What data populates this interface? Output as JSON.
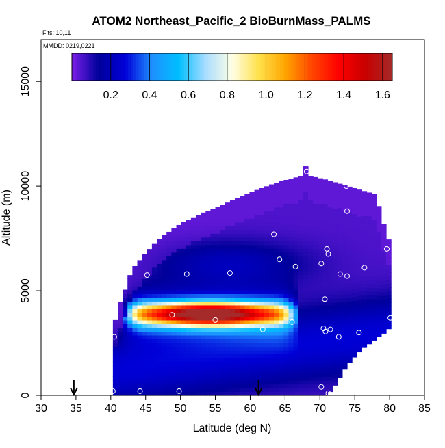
{
  "chart_data": {
    "type": "heatmap",
    "title": "ATOM2 Northeast_Pacific_2 BioBurnMass_PALMS",
    "info_lines": [
      "Flts: 10,11",
      "MMDD: 0219,0221"
    ],
    "xlabel": "Latitude (deg N)",
    "ylabel": "Altitude (m)",
    "xlim": [
      30,
      85
    ],
    "ylim": [
      0,
      17000
    ],
    "x_ticks": [
      30,
      35,
      40,
      45,
      50,
      55,
      60,
      65,
      70,
      75,
      80,
      85
    ],
    "y_ticks": [
      0,
      5000,
      10000,
      15000
    ],
    "colorbar": {
      "range": [
        0,
        1.65
      ],
      "ticks": [
        "0.2",
        "0.4",
        "0.6",
        "0.8",
        "1.0",
        "1.2",
        "1.4",
        "1.6"
      ],
      "tick_values": [
        0.2,
        0.4,
        0.6,
        0.8,
        1.0,
        1.2,
        1.4,
        1.6
      ],
      "colors": [
        "#7b1fe8",
        "#00009a",
        "#0000d8",
        "#1e90ff",
        "#00bfff",
        "#a8dcff",
        "#ffffe6",
        "#ffe04a",
        "#ffa500",
        "#ff4500",
        "#ff0000",
        "#c80000",
        "#a52a2a"
      ]
    },
    "arrows_latitude": [
      34.7,
      61.2
    ],
    "envelope": [
      {
        "lat": 40.3,
        "bottom": 0,
        "top": 3000
      },
      {
        "lat": 41.0,
        "bottom": 0,
        "top": 4200
      },
      {
        "lat": 42.0,
        "bottom": 0,
        "top": 5000
      },
      {
        "lat": 43.0,
        "bottom": 0,
        "top": 6000
      },
      {
        "lat": 45.0,
        "bottom": 0,
        "top": 6800
      },
      {
        "lat": 47.0,
        "bottom": 0,
        "top": 7500
      },
      {
        "lat": 50.0,
        "bottom": 0,
        "top": 8200
      },
      {
        "lat": 53.0,
        "bottom": 0,
        "top": 8700
      },
      {
        "lat": 56.0,
        "bottom": 0,
        "top": 9100
      },
      {
        "lat": 60.0,
        "bottom": 0,
        "top": 9700
      },
      {
        "lat": 64.0,
        "bottom": 0,
        "top": 10200
      },
      {
        "lat": 67.5,
        "bottom": 0,
        "top": 10500
      },
      {
        "lat": 68.0,
        "bottom": 0,
        "top": 11000
      },
      {
        "lat": 68.5,
        "bottom": 0,
        "top": 10500
      },
      {
        "lat": 71.0,
        "bottom": 0,
        "top": 10300
      },
      {
        "lat": 72.0,
        "bottom": 400,
        "top": 10200
      },
      {
        "lat": 74.0,
        "bottom": 1500,
        "top": 10000
      },
      {
        "lat": 76.0,
        "bottom": 2200,
        "top": 9800
      },
      {
        "lat": 78.0,
        "bottom": 2700,
        "top": 9600
      },
      {
        "lat": 79.3,
        "bottom": 3000,
        "top": 8000
      },
      {
        "lat": 80.5,
        "bottom": 3400,
        "top": 6800
      }
    ],
    "plume": {
      "core_altitude": 3900,
      "core_halfwidth": 550,
      "lat_start": 42.5,
      "lat_end": 66.0,
      "peak_lat": 54.0,
      "peak_value": 1.5
    },
    "sample_points": [
      {
        "lat": 40.3,
        "alt": 200
      },
      {
        "lat": 44.2,
        "alt": 200
      },
      {
        "lat": 49.8,
        "alt": 200
      },
      {
        "lat": 70.2,
        "alt": 400
      },
      {
        "lat": 71.2,
        "alt": 100
      },
      {
        "lat": 40.5,
        "alt": 2800
      },
      {
        "lat": 48.8,
        "alt": 3850
      },
      {
        "lat": 55.0,
        "alt": 3600
      },
      {
        "lat": 61.8,
        "alt": 3150
      },
      {
        "lat": 66.0,
        "alt": 3500
      },
      {
        "lat": 70.5,
        "alt": 3200
      },
      {
        "lat": 71.5,
        "alt": 3150
      },
      {
        "lat": 70.8,
        "alt": 3050
      },
      {
        "lat": 72.7,
        "alt": 2800
      },
      {
        "lat": 75.6,
        "alt": 3000
      },
      {
        "lat": 80.1,
        "alt": 3700
      },
      {
        "lat": 70.7,
        "alt": 4600
      },
      {
        "lat": 42.9,
        "alt": 6700
      },
      {
        "lat": 45.2,
        "alt": 5750
      },
      {
        "lat": 50.9,
        "alt": 5800
      },
      {
        "lat": 57.1,
        "alt": 5850
      },
      {
        "lat": 63.4,
        "alt": 7700
      },
      {
        "lat": 64.2,
        "alt": 6500
      },
      {
        "lat": 66.5,
        "alt": 6150
      },
      {
        "lat": 70.2,
        "alt": 6300
      },
      {
        "lat": 71.0,
        "alt": 7000
      },
      {
        "lat": 71.2,
        "alt": 6750
      },
      {
        "lat": 72.9,
        "alt": 5800
      },
      {
        "lat": 73.9,
        "alt": 5700
      },
      {
        "lat": 76.4,
        "alt": 6100
      },
      {
        "lat": 79.6,
        "alt": 7000
      },
      {
        "lat": 73.9,
        "alt": 8800
      },
      {
        "lat": 78.6,
        "alt": 9600
      },
      {
        "lat": 73.8,
        "alt": 10000
      },
      {
        "lat": 68.1,
        "alt": 10700
      }
    ]
  }
}
